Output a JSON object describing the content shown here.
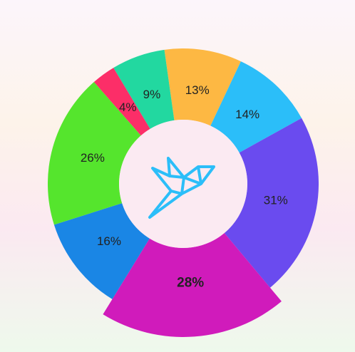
{
  "chart_data": {
    "type": "doughnut",
    "categories": [
      null,
      null,
      null,
      null,
      null,
      null,
      null,
      null
    ],
    "values": [
      13,
      14,
      31,
      28,
      16,
      26,
      4,
      9
    ],
    "value_labels": [
      "13%",
      "14%",
      "31%",
      "28%",
      "16%",
      "26%",
      "4%",
      "9%"
    ],
    "colors": [
      "#fdb843",
      "#2bbef9",
      "#6a4bef",
      "#d01bbb",
      "#1a86e5",
      "#55e52d",
      "#fc2e68",
      "#22d8a0"
    ],
    "selected_index": 3
  }
}
